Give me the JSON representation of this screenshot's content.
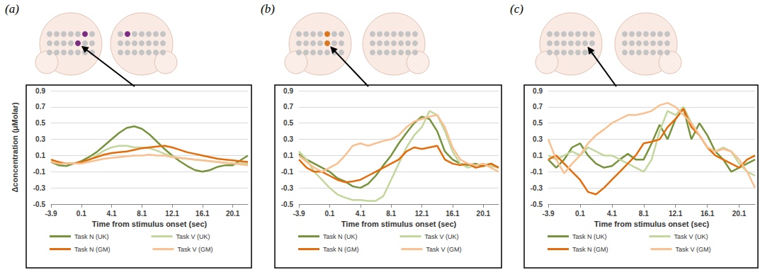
{
  "chart_data": [
    {
      "type": "line",
      "label": "(a)",
      "xlabel": "Time from stimulus onset (sec)",
      "ylabel": "Δconcentration (μMolar)",
      "x": [
        -3.9,
        -2.9,
        -1.9,
        -0.9,
        0.1,
        1.1,
        2.1,
        3.1,
        4.1,
        5.1,
        6.1,
        7.1,
        8.1,
        9.1,
        10.1,
        11.1,
        12.1,
        13.1,
        14.1,
        15.1,
        16.1,
        17.1,
        18.1,
        19.1,
        20.1,
        21.1,
        22.1
      ],
      "xlim": [
        -3.9,
        22.1
      ],
      "xticks": [
        -3.9,
        0.1,
        4.1,
        8.1,
        12.1,
        16.1,
        20.1
      ],
      "ylim": [
        -0.5,
        0.9
      ],
      "yticks": [
        -0.5,
        -0.3,
        -0.1,
        0.1,
        0.3,
        0.5,
        0.7,
        0.9
      ],
      "grid": true,
      "legend": "bottom",
      "series": [
        {
          "name": "Task N (UK)",
          "color": "#77933c",
          "values": [
            0.02,
            -0.02,
            -0.03,
            0,
            0.03,
            0.08,
            0.14,
            0.22,
            0.3,
            0.38,
            0.44,
            0.46,
            0.43,
            0.36,
            0.27,
            0.18,
            0.1,
            0.03,
            -0.03,
            -0.08,
            -0.1,
            -0.08,
            -0.04,
            -0.02,
            -0.02,
            0.04,
            0.1
          ]
        },
        {
          "name": "Task V (UK)",
          "color": "#c3d69b",
          "values": [
            0.03,
            0.01,
            0,
            0,
            0.01,
            0.04,
            0.1,
            0.16,
            0.2,
            0.22,
            0.22,
            0.2,
            0.2,
            0.19,
            0.16,
            0.12,
            0.09,
            0.07,
            0.06,
            0.05,
            0.04,
            0.03,
            0.02,
            0.01,
            0,
            0,
            0
          ]
        },
        {
          "name": "Task N (GM)",
          "color": "#e46c0a",
          "values": [
            0.05,
            0.02,
            0,
            0,
            0.02,
            0.05,
            0.08,
            0.11,
            0.13,
            0.14,
            0.15,
            0.17,
            0.19,
            0.2,
            0.21,
            0.22,
            0.2,
            0.17,
            0.14,
            0.12,
            0.1,
            0.08,
            0.06,
            0.05,
            0.04,
            0.03,
            0.02
          ]
        },
        {
          "name": "Task V (GM)",
          "color": "#fac090",
          "values": [
            0.02,
            0,
            0,
            0,
            0,
            0.02,
            0.04,
            0.06,
            0.07,
            0.08,
            0.09,
            0.1,
            0.1,
            0.11,
            0.1,
            0.1,
            0.08,
            0.07,
            0.06,
            0.05,
            0.04,
            0.03,
            0.02,
            0.01,
            0,
            -0.01,
            -0.02
          ]
        }
      ]
    },
    {
      "type": "line",
      "label": "(b)",
      "xlabel": "Time from stimulus onset (sec)",
      "x": [
        -3.9,
        -2.9,
        -1.9,
        -0.9,
        0.1,
        1.1,
        2.1,
        3.1,
        4.1,
        5.1,
        6.1,
        7.1,
        8.1,
        9.1,
        10.1,
        11.1,
        12.1,
        13.1,
        14.1,
        15.1,
        16.1,
        17.1,
        18.1,
        19.1,
        20.1,
        21.1,
        22.1
      ],
      "xlim": [
        -3.9,
        22.1
      ],
      "xticks": [
        -3.9,
        0.1,
        4.1,
        8.1,
        12.1,
        16.1,
        20.1
      ],
      "ylim": [
        -0.5,
        0.9
      ],
      "yticks": [
        -0.5,
        -0.3,
        -0.1,
        0.1,
        0.3,
        0.5,
        0.7,
        0.9
      ],
      "grid": true,
      "legend": "bottom",
      "series": [
        {
          "name": "Task N (UK)",
          "color": "#77933c",
          "values": [
            0.12,
            0.05,
            0,
            -0.05,
            -0.1,
            -0.18,
            -0.22,
            -0.28,
            -0.3,
            -0.25,
            -0.15,
            -0.02,
            0.1,
            0.25,
            0.38,
            0.5,
            0.58,
            0.55,
            0.4,
            0.15,
            0.05,
            0,
            -0.02,
            0,
            -0.03,
            0,
            -0.05
          ]
        },
        {
          "name": "Task V (UK)",
          "color": "#c3d69b",
          "values": [
            0.15,
            0.05,
            -0.1,
            -0.2,
            -0.3,
            -0.38,
            -0.42,
            -0.45,
            -0.45,
            -0.46,
            -0.46,
            -0.4,
            -0.2,
            0,
            0.2,
            0.35,
            0.45,
            0.65,
            0.6,
            0.4,
            0.15,
            0,
            -0.05,
            -0.02,
            0,
            -0.03,
            -0.05
          ]
        },
        {
          "name": "Task N (GM)",
          "color": "#e46c0a",
          "values": [
            0.05,
            -0.05,
            -0.1,
            -0.1,
            -0.15,
            -0.2,
            -0.23,
            -0.22,
            -0.2,
            -0.15,
            -0.1,
            -0.05,
            0,
            0.05,
            0.15,
            0.2,
            0.18,
            0.2,
            0.22,
            0.05,
            0,
            -0.02,
            0,
            -0.05,
            -0.03,
            0,
            -0.05
          ]
        },
        {
          "name": "Task V (GM)",
          "color": "#fac090",
          "values": [
            0.1,
            0.02,
            -0.05,
            -0.1,
            -0.05,
            0,
            0.1,
            0.22,
            0.25,
            0.22,
            0.25,
            0.28,
            0.3,
            0.35,
            0.45,
            0.52,
            0.55,
            0.58,
            0.6,
            0.45,
            0.2,
            0.05,
            0,
            -0.02,
            0,
            -0.05,
            -0.1
          ]
        }
      ]
    },
    {
      "type": "line",
      "label": "(c)",
      "xlabel": "Time from stimulus onset (sec)",
      "x": [
        -3.9,
        -2.9,
        -1.9,
        -0.9,
        0.1,
        1.1,
        2.1,
        3.1,
        4.1,
        5.1,
        6.1,
        7.1,
        8.1,
        9.1,
        10.1,
        11.1,
        12.1,
        13.1,
        14.1,
        15.1,
        16.1,
        17.1,
        18.1,
        19.1,
        20.1,
        21.1,
        22.1
      ],
      "xlim": [
        -3.9,
        22.1
      ],
      "xticks": [
        -3.9,
        0.1,
        4.1,
        8.1,
        12.1,
        16.1,
        20.1
      ],
      "ylim": [
        -0.5,
        0.9
      ],
      "yticks": [
        -0.5,
        -0.3,
        -0.1,
        0.1,
        0.3,
        0.5,
        0.7,
        0.9
      ],
      "grid": true,
      "legend": "bottom",
      "series": [
        {
          "name": "Task N (UK)",
          "color": "#77933c",
          "values": [
            0.05,
            -0.05,
            0.05,
            0.2,
            0.25,
            0.1,
            0,
            -0.05,
            -0.03,
            0.05,
            0.12,
            0.05,
            0.05,
            0.25,
            0.48,
            0.3,
            0.55,
            0.68,
            0.3,
            0.5,
            0.35,
            0.15,
            0.05,
            -0.1,
            -0.05,
            0,
            0.05
          ]
        },
        {
          "name": "Task V (UK)",
          "color": "#c3d69b",
          "values": [
            0.1,
            0.05,
            0.1,
            0.15,
            0.1,
            0.2,
            0.15,
            0.1,
            0.1,
            0.05,
            0,
            -0.05,
            -0.1,
            0.05,
            0.4,
            0.65,
            0.6,
            0.7,
            0.5,
            0.35,
            0.2,
            0.15,
            0.2,
            0.15,
            0,
            -0.1,
            -0.15
          ]
        },
        {
          "name": "Task N (GM)",
          "color": "#e46c0a",
          "values": [
            0.05,
            0.1,
            0,
            -0.1,
            -0.2,
            -0.35,
            -0.38,
            -0.3,
            -0.2,
            -0.1,
            0,
            0.1,
            0.25,
            0.27,
            0.3,
            0.45,
            0.55,
            0.68,
            0.45,
            0.35,
            0.2,
            0.1,
            0.05,
            0,
            -0.05,
            0.05,
            0.1
          ]
        },
        {
          "name": "Task V (GM)",
          "color": "#fac090",
          "values": [
            0.3,
            0.05,
            -0.12,
            0,
            0.1,
            0.25,
            0.35,
            0.42,
            0.5,
            0.55,
            0.6,
            0.6,
            0.62,
            0.65,
            0.72,
            0.75,
            0.7,
            0.6,
            0.5,
            0.35,
            0.2,
            0.15,
            0.18,
            0.15,
            0.05,
            -0.1,
            -0.3
          ]
        }
      ]
    }
  ]
}
